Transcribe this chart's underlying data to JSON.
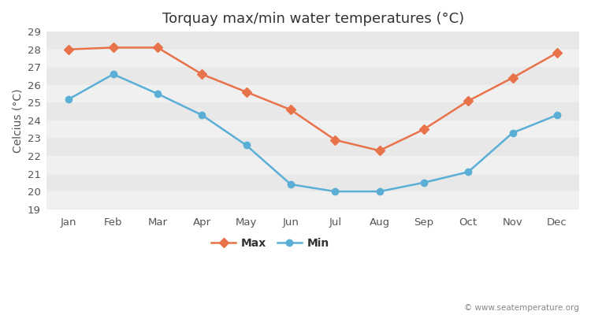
{
  "title": "Torquay max/min water temperatures (°C)",
  "ylabel": "Celcius (°C)",
  "months": [
    "Jan",
    "Feb",
    "Mar",
    "Apr",
    "May",
    "Jun",
    "Jul",
    "Aug",
    "Sep",
    "Oct",
    "Nov",
    "Dec"
  ],
  "max_temps": [
    28.0,
    28.1,
    28.1,
    26.6,
    25.6,
    24.6,
    22.9,
    22.3,
    23.5,
    25.1,
    26.4,
    27.8
  ],
  "min_temps": [
    25.2,
    26.6,
    25.5,
    24.3,
    22.6,
    20.4,
    20.0,
    20.0,
    20.5,
    21.1,
    23.3,
    24.3
  ],
  "max_color": "#e8724a",
  "min_color": "#5bafd6",
  "background_color": "#ffffff",
  "band_color_light": "#f0f0f0",
  "band_color_dark": "#e8e8e8",
  "ylim": [
    19,
    29
  ],
  "yticks": [
    19,
    20,
    21,
    22,
    23,
    24,
    25,
    26,
    27,
    28,
    29
  ],
  "legend_labels": [
    "Max",
    "Min"
  ],
  "watermark": "© www.seatemperature.org",
  "title_fontsize": 13,
  "axis_fontsize": 10,
  "tick_fontsize": 9.5
}
